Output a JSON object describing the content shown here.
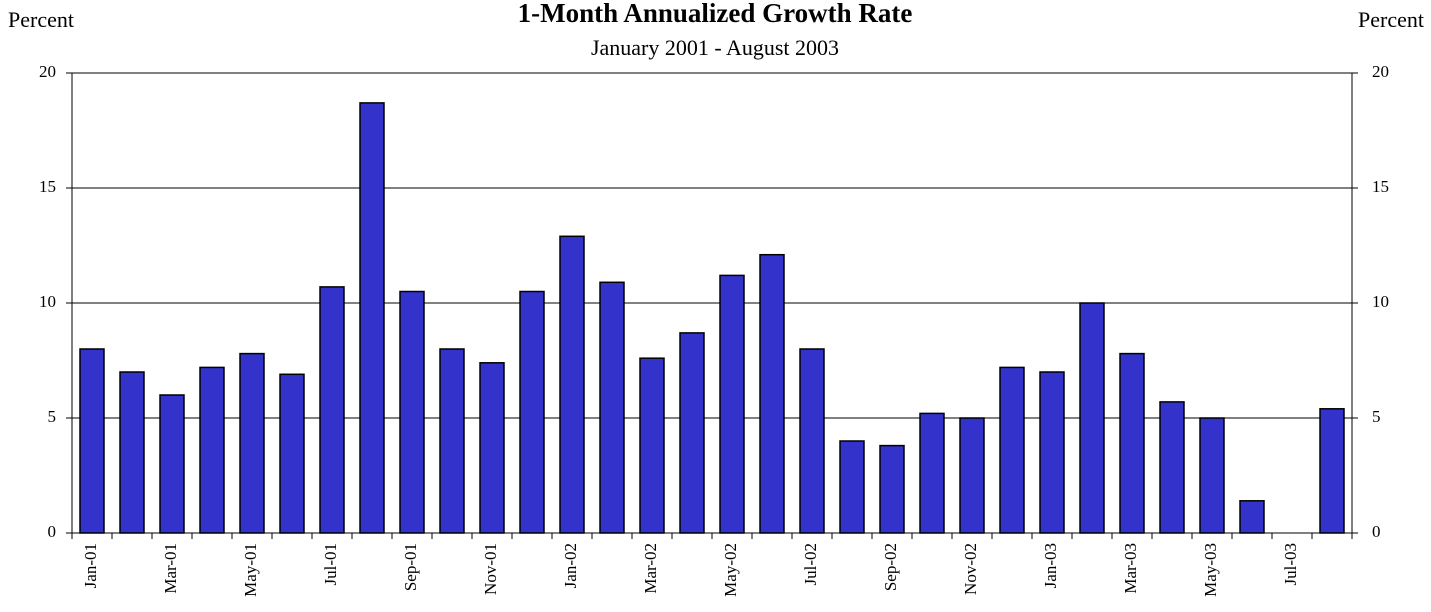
{
  "chart_data": {
    "type": "bar",
    "title": "1-Month Annualized Growth Rate",
    "subtitle": "January 2001 - August 2003",
    "y_label": "Percent",
    "y2_label": "Percent",
    "categories": [
      "Jan-01",
      null,
      "Mar-01",
      null,
      "May-01",
      null,
      "Jul-01",
      null,
      "Sep-01",
      null,
      "Nov-01",
      null,
      "Jan-02",
      null,
      "Mar-02",
      null,
      "May-02",
      null,
      "Jul-02",
      null,
      "Sep-02",
      null,
      "Nov-02",
      null,
      "Jan-03",
      null,
      "Mar-03",
      null,
      "May-03",
      null,
      "Jul-03",
      null
    ],
    "values": [
      8.0,
      7.0,
      6.0,
      7.2,
      7.8,
      6.9,
      10.7,
      18.7,
      10.5,
      8.0,
      7.4,
      10.5,
      12.9,
      10.9,
      7.6,
      8.7,
      11.2,
      12.1,
      8.0,
      4.0,
      3.8,
      5.2,
      5.0,
      7.2,
      7.0,
      10.0,
      7.8,
      5.7,
      5.0,
      1.4,
      null,
      5.4
    ],
    "color": "#3333cc",
    "ylim": [
      0,
      20
    ],
    "yticks": [
      0,
      5,
      10,
      15,
      20
    ],
    "y2lim": [
      0,
      20
    ],
    "y2ticks": [
      0,
      5,
      10,
      15,
      20
    ],
    "grid": true
  }
}
